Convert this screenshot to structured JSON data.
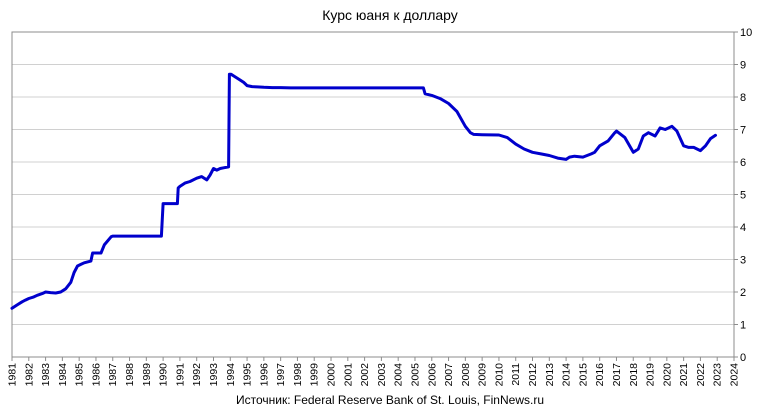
{
  "chart_data": {
    "type": "line",
    "title": "Курс юаня к доллару",
    "source": "Источник: Federal Reserve Bank of St. Louis, FinNews.ru",
    "xlabel": "",
    "ylabel": "",
    "x_ticks": [
      "1981",
      "1982",
      "1983",
      "1984",
      "1985",
      "1986",
      "1987",
      "1988",
      "1989",
      "1990",
      "1991",
      "1992",
      "1993",
      "1994",
      "1995",
      "1996",
      "1997",
      "1998",
      "1999",
      "2000",
      "2001",
      "2002",
      "2003",
      "2004",
      "2005",
      "2006",
      "2007",
      "2008",
      "2009",
      "2010",
      "2011",
      "2012",
      "2013",
      "2014",
      "2015",
      "2016",
      "2017",
      "2018",
      "2019",
      "2020",
      "2021",
      "2022",
      "2023",
      "2024"
    ],
    "y_ticks": [
      "0",
      "1",
      "2",
      "3",
      "4",
      "5",
      "6",
      "7",
      "8",
      "9",
      "10"
    ],
    "xlim": [
      1981,
      2024
    ],
    "ylim": [
      0,
      10
    ],
    "y_axis_side": "right",
    "grid": "horizontal",
    "line_color": "#0000cc",
    "series": [
      {
        "x": [
          1981.0,
          1981.3,
          1981.6,
          1981.8,
          1982.0,
          1982.3,
          1982.5,
          1982.8,
          1983.0,
          1983.3,
          1983.6,
          1983.9,
          1984.2,
          1984.5,
          1984.7,
          1984.9,
          1985.1,
          1985.3,
          1985.7,
          1985.8,
          1986.3,
          1986.5,
          1986.9,
          1987.0,
          1988.0,
          1989.0,
          1989.9,
          1990.0,
          1990.85,
          1990.9,
          1991.0,
          1991.3,
          1991.6,
          1992.0,
          1992.3,
          1992.6,
          1992.8,
          1993.0,
          1993.2,
          1993.4,
          1993.6,
          1993.9,
          1993.95,
          1994.05,
          1994.2,
          1994.5,
          1994.8,
          1995.0,
          1995.3,
          1995.6,
          1996.0,
          1996.5,
          1997.0,
          1997.6,
          1998.0,
          1999.0,
          2000.0,
          2001.0,
          2002.0,
          2003.0,
          2004.0,
          2005.5,
          2005.6,
          2006.0,
          2006.5,
          2007.0,
          2007.5,
          2008.0,
          2008.3,
          2008.5,
          2009.0,
          2010.0,
          2010.5,
          2011.0,
          2011.5,
          2012.0,
          2012.5,
          2013.0,
          2013.5,
          2014.0,
          2014.2,
          2014.5,
          2015.0,
          2015.5,
          2015.7,
          2016.0,
          2016.5,
          2016.9,
          2017.0,
          2017.5,
          2018.0,
          2018.3,
          2018.6,
          2018.9,
          2019.3,
          2019.6,
          2019.9,
          2020.3,
          2020.6,
          2021.0,
          2021.3,
          2021.6,
          2022.0,
          2022.3,
          2022.6,
          2022.9
        ],
        "y": [
          1.5,
          1.6,
          1.7,
          1.75,
          1.8,
          1.85,
          1.9,
          1.95,
          2.0,
          1.98,
          1.97,
          2.0,
          2.1,
          2.3,
          2.6,
          2.8,
          2.85,
          2.9,
          2.95,
          3.2,
          3.2,
          3.45,
          3.7,
          3.72,
          3.72,
          3.72,
          3.72,
          4.72,
          4.72,
          5.2,
          5.25,
          5.35,
          5.4,
          5.5,
          5.55,
          5.45,
          5.6,
          5.8,
          5.75,
          5.8,
          5.82,
          5.85,
          8.7,
          8.7,
          8.65,
          8.55,
          8.45,
          8.35,
          8.32,
          8.31,
          8.3,
          8.29,
          8.29,
          8.28,
          8.28,
          8.28,
          8.28,
          8.28,
          8.28,
          8.28,
          8.28,
          8.28,
          8.1,
          8.05,
          7.95,
          7.8,
          7.55,
          7.1,
          6.9,
          6.85,
          6.84,
          6.83,
          6.75,
          6.55,
          6.4,
          6.3,
          6.25,
          6.2,
          6.12,
          6.08,
          6.15,
          6.18,
          6.15,
          6.25,
          6.3,
          6.5,
          6.65,
          6.9,
          6.95,
          6.75,
          6.3,
          6.4,
          6.8,
          6.9,
          6.8,
          7.05,
          7.0,
          7.1,
          6.95,
          6.5,
          6.45,
          6.45,
          6.35,
          6.5,
          6.72,
          6.82
        ]
      }
    ]
  }
}
